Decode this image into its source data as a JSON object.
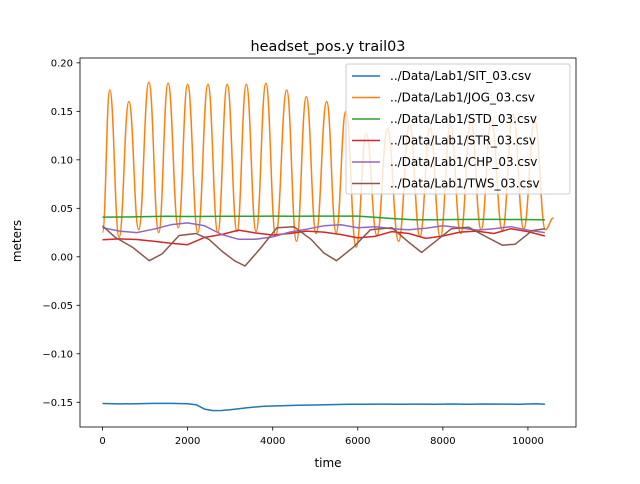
{
  "chart_data": {
    "type": "line",
    "title": "headset_pos.y trail03",
    "xlabel": "time",
    "ylabel": "meters",
    "xlim": [
      -530,
      11130
    ],
    "ylim": [
      -0.1755,
      0.205
    ],
    "xticks": [
      0,
      2000,
      4000,
      6000,
      8000,
      10000
    ],
    "xtick_labels": [
      "0",
      "2000",
      "4000",
      "6000",
      "8000",
      "10000"
    ],
    "yticks": [
      -0.15,
      -0.1,
      -0.05,
      0.0,
      0.05,
      0.1,
      0.15,
      0.2
    ],
    "ytick_labels": [
      "−0.15",
      "−0.10",
      "−0.05",
      "0.00",
      "0.05",
      "0.10",
      "0.15",
      "0.20"
    ],
    "grid": false,
    "legend_position": "top-right",
    "series": [
      {
        "name": "../Data/Lab1/SIT_03.csv",
        "color": "#1f77b4",
        "x": [
          0,
          400,
          800,
          1200,
          1600,
          2000,
          2200,
          2400,
          2600,
          2800,
          3000,
          3400,
          3800,
          4200,
          4600,
          5000,
          5400,
          5800,
          6200,
          6600,
          7000,
          7400,
          7800,
          8200,
          8600,
          9000,
          9400,
          9800,
          10200,
          10400
        ],
        "y": [
          -0.1513,
          -0.1517,
          -0.1515,
          -0.1512,
          -0.1512,
          -0.1516,
          -0.1525,
          -0.157,
          -0.1586,
          -0.1585,
          -0.1578,
          -0.1556,
          -0.1542,
          -0.1536,
          -0.153,
          -0.1528,
          -0.1524,
          -0.1521,
          -0.1521,
          -0.1519,
          -0.152,
          -0.1519,
          -0.1521,
          -0.1518,
          -0.1521,
          -0.1518,
          -0.1519,
          -0.152,
          -0.1516,
          -0.152
        ]
      },
      {
        "name": "../Data/Lab1/JOG_03.csv",
        "color": "#ff7f0e",
        "x": [],
        "y": [],
        "peaks": [
          [
            170,
            0.172
          ],
          [
            620,
            0.16
          ],
          [
            1090,
            0.18
          ],
          [
            1540,
            0.179
          ],
          [
            2000,
            0.178
          ],
          [
            2480,
            0.178
          ],
          [
            2930,
            0.178
          ],
          [
            3380,
            0.178
          ],
          [
            3840,
            0.179
          ],
          [
            4330,
            0.172
          ],
          [
            4790,
            0.165
          ],
          [
            5270,
            0.16
          ],
          [
            5720,
            0.15
          ],
          [
            6200,
            0.127
          ],
          [
            6700,
            0.132
          ],
          [
            7220,
            0.136
          ],
          [
            7700,
            0.133
          ],
          [
            8180,
            0.136
          ],
          [
            8660,
            0.139
          ],
          [
            9140,
            0.141
          ],
          [
            9650,
            0.147
          ],
          [
            10160,
            0.141
          ]
        ],
        "troughs": [
          [
            0,
            0.025
          ],
          [
            390,
            0.02
          ],
          [
            850,
            0.028
          ],
          [
            1320,
            0.025
          ],
          [
            1780,
            0.03
          ],
          [
            2240,
            0.025
          ],
          [
            2710,
            0.025
          ],
          [
            3160,
            0.026
          ],
          [
            3610,
            0.026
          ],
          [
            4070,
            0.022
          ],
          [
            4560,
            0.016
          ],
          [
            5020,
            0.024
          ],
          [
            5490,
            0.025
          ],
          [
            5960,
            0.01
          ],
          [
            6450,
            0.022
          ],
          [
            6960,
            0.016
          ],
          [
            7460,
            0.021
          ],
          [
            7940,
            0.02
          ],
          [
            8420,
            0.024
          ],
          [
            8900,
            0.028
          ],
          [
            9400,
            0.027
          ],
          [
            9900,
            0.029
          ],
          [
            10410,
            0.028
          ],
          [
            10600,
            0.04
          ]
        ]
      },
      {
        "name": "../Data/Lab1/STD_03.csv",
        "color": "#2ca02c",
        "x": [
          0,
          500,
          1000,
          1500,
          2000,
          2500,
          3000,
          3500,
          4000,
          4500,
          5000,
          5500,
          6000,
          6300,
          6800,
          7300,
          7800,
          8300,
          8800,
          9300,
          9800,
          10300,
          10400
        ],
        "y": [
          0.0409,
          0.041,
          0.0415,
          0.0418,
          0.0416,
          0.0417,
          0.0418,
          0.0418,
          0.042,
          0.0419,
          0.042,
          0.042,
          0.042,
          0.041,
          0.0395,
          0.0383,
          0.0382,
          0.0385,
          0.0386,
          0.0386,
          0.0385,
          0.0382,
          0.0382
        ]
      },
      {
        "name": "../Data/Lab1/STR_03.csv",
        "color": "#d62728",
        "x": [
          0,
          400,
          800,
          1200,
          1600,
          2000,
          2400,
          2800,
          3200,
          3600,
          4000,
          4400,
          4800,
          5200,
          5600,
          6000,
          6400,
          6800,
          7200,
          7600,
          8000,
          8400,
          8800,
          9200,
          9600,
          10000,
          10400
        ],
        "y": [
          0.0175,
          0.0185,
          0.0178,
          0.016,
          0.014,
          0.0125,
          0.02,
          0.023,
          0.0275,
          0.0245,
          0.0225,
          0.024,
          0.0265,
          0.0255,
          0.023,
          0.0195,
          0.021,
          0.026,
          0.024,
          0.019,
          0.0215,
          0.0255,
          0.0265,
          0.024,
          0.029,
          0.026,
          0.0215
        ]
      },
      {
        "name": "../Data/Lab1/CHP_03.csv",
        "color": "#9467bd",
        "x": [
          0,
          400,
          800,
          1200,
          1600,
          2000,
          2400,
          2800,
          3200,
          3600,
          4000,
          4400,
          4800,
          5200,
          5600,
          6000,
          6400,
          6800,
          7200,
          7600,
          8000,
          8400,
          8800,
          9200,
          9600,
          10000,
          10400
        ],
        "y": [
          0.03,
          0.0265,
          0.025,
          0.0285,
          0.033,
          0.035,
          0.032,
          0.023,
          0.018,
          0.018,
          0.0205,
          0.0255,
          0.0285,
          0.032,
          0.033,
          0.03,
          0.031,
          0.029,
          0.028,
          0.0295,
          0.032,
          0.03,
          0.0275,
          0.029,
          0.031,
          0.0275,
          0.025
        ]
      },
      {
        "name": "../Data/Lab1/TWS_03.csv",
        "color": "#8c564b",
        "x": [
          0,
          300,
          700,
          1100,
          1400,
          1800,
          2200,
          2500,
          2800,
          3100,
          3350,
          3700,
          4100,
          4500,
          4900,
          5200,
          5500,
          5900,
          6300,
          6800,
          7200,
          7500,
          7800,
          8200,
          8600,
          9000,
          9400,
          9700,
          10100,
          10400
        ],
        "y": [
          0.032,
          0.02,
          0.01,
          -0.004,
          0.003,
          0.022,
          0.024,
          0.018,
          0.006,
          -0.004,
          -0.0095,
          0.008,
          0.03,
          0.031,
          0.018,
          0.004,
          -0.004,
          0.01,
          0.028,
          0.03,
          0.015,
          0.0045,
          0.015,
          0.029,
          0.0305,
          0.021,
          0.012,
          0.013,
          0.027,
          0.029
        ]
      }
    ]
  }
}
